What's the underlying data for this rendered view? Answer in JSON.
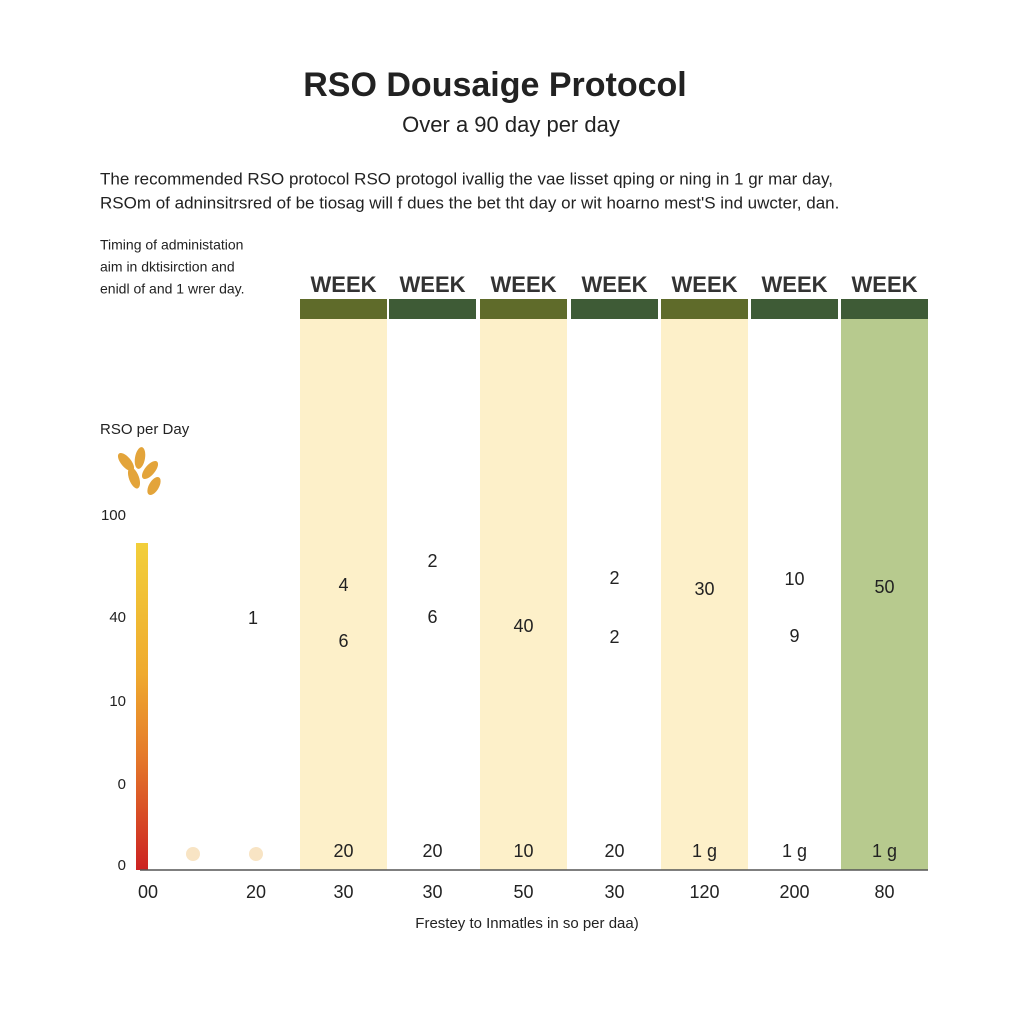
{
  "header": {
    "title": "RSO Dousaige Protocol",
    "subtitle": "Over a 90 day per day"
  },
  "intro": [
    "The recommended RSO protocol RSO protogol ivallig the vae lisset qping or ning in 1 gr mar day,",
    "RSOm of adninsitrsred of be tiosag will f dues the bet tht day or wit hoarno mest'S ind uwcter, dan."
  ],
  "side_note": [
    "Timing of administation",
    "aim in dktisirction and",
    "enidl of and 1 wrer day."
  ],
  "axis_label": "RSO per Day",
  "scale_labels": [
    "100",
    "40",
    "10",
    "0",
    "0"
  ],
  "lead": {
    "x_labels": [
      "00",
      "20"
    ],
    "value": "1"
  },
  "columns": [
    {
      "header": "WEEK",
      "values": [
        "4",
        "6"
      ],
      "bottom": "20",
      "x_label": "30"
    },
    {
      "header": "WEEK",
      "values": [
        "2",
        "6"
      ],
      "bottom": "20",
      "x_label": "30"
    },
    {
      "header": "WEEK",
      "values": [
        "40"
      ],
      "bottom": "10",
      "x_label": "50"
    },
    {
      "header": "WEEK",
      "values": [
        "2",
        "2"
      ],
      "bottom": "20",
      "x_label": "30"
    },
    {
      "header": "WEEK",
      "values": [
        "30"
      ],
      "bottom": "1 g",
      "x_label": "120"
    },
    {
      "header": "WEEK",
      "values": [
        "10",
        "9"
      ],
      "bottom": "1 g",
      "x_label": "200"
    },
    {
      "header": "WEEK",
      "values": [
        "50"
      ],
      "bottom": "1 g",
      "x_label": "80"
    }
  ],
  "footer": "Frestey to Inmatles in so per daa)"
}
